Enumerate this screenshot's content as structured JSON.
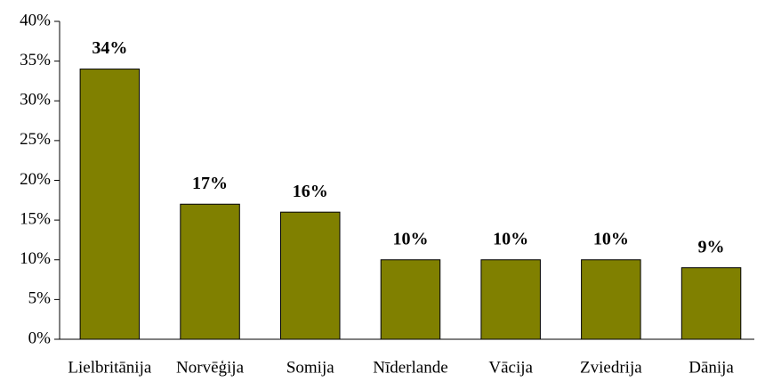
{
  "chart_data": {
    "type": "bar",
    "categories": [
      "Lielbritānija",
      "Norvēģija",
      "Somija",
      "Nīderlande",
      "Vācija",
      "Zviedrija",
      "Dānija"
    ],
    "values": [
      34,
      17,
      16,
      10,
      10,
      10,
      9
    ],
    "value_labels": [
      "34%",
      "17%",
      "16%",
      "10%",
      "10%",
      "10%",
      "9%"
    ],
    "color": "#808000",
    "ylim": [
      0,
      40
    ],
    "yticks": [
      {
        "value": 0,
        "label": "0%"
      },
      {
        "value": 5,
        "label": "5%"
      },
      {
        "value": 10,
        "label": "10%"
      },
      {
        "value": 15,
        "label": "15%"
      },
      {
        "value": 20,
        "label": "20%"
      },
      {
        "value": 25,
        "label": "25%"
      },
      {
        "value": 30,
        "label": "30%"
      },
      {
        "value": 35,
        "label": "35%"
      },
      {
        "value": 40,
        "label": "40%"
      }
    ],
    "grid": false
  }
}
